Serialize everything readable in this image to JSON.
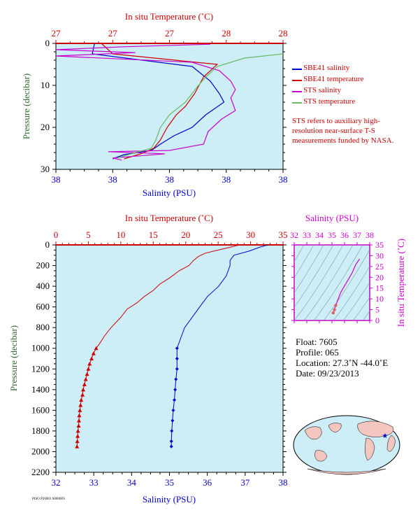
{
  "chart_data": [
    {
      "type": "line",
      "name": "near-surface",
      "top_axis_label": "In situ Temperature (˚C)",
      "top_ticks": [
        "27",
        "27",
        "27",
        "28",
        "28"
      ],
      "bottom_axis_label": "Salinity (PSU)",
      "bottom_ticks": [
        "38",
        "38",
        "38",
        "38",
        "38"
      ],
      "ylabel": "Pressure (decibar)",
      "y_ticks": [
        0,
        10,
        20,
        30
      ],
      "ylim": [
        0,
        30
      ],
      "grid": false,
      "legend_position": "right",
      "series": [
        {
          "name": "SBE41 salinity",
          "color": "#0000cc",
          "points": [
            [
              0.17,
              0
            ],
            [
              0.16,
              2.5
            ],
            [
              0.6,
              5.5
            ],
            [
              0.68,
              9
            ],
            [
              0.72,
              12
            ],
            [
              0.74,
              14
            ],
            [
              0.66,
              17
            ],
            [
              0.6,
              20
            ],
            [
              0.52,
              22
            ],
            [
              0.46,
              24
            ],
            [
              0.42,
              25.5
            ],
            [
              0.3,
              26.5
            ],
            [
              0.25,
              27.5
            ]
          ]
        },
        {
          "name": "SBE41 temperature",
          "color": "#cc0000",
          "points": [
            [
              0.2,
              0
            ],
            [
              0.25,
              2.5
            ],
            [
              0.71,
              5
            ],
            [
              0.65,
              8
            ],
            [
              0.61,
              12
            ],
            [
              0.57,
              15
            ],
            [
              0.53,
              17
            ],
            [
              0.49,
              20
            ],
            [
              0.46,
              23
            ],
            [
              0.43,
              25
            ],
            [
              0.38,
              26.2
            ],
            [
              0.3,
              27.5
            ]
          ]
        },
        {
          "name": "STS salinity",
          "color": "#cc00cc",
          "points": [
            [
              0.68,
              0.2
            ],
            [
              0.3,
              0.8
            ],
            [
              0.0,
              1.5
            ],
            [
              0.35,
              2.2
            ],
            [
              0.0,
              3.0
            ],
            [
              0.6,
              4.5
            ],
            [
              0.72,
              6.5
            ],
            [
              0.77,
              9
            ],
            [
              0.79,
              11
            ],
            [
              0.77,
              13
            ],
            [
              0.79,
              16
            ],
            [
              0.73,
              18
            ],
            [
              0.67,
              21
            ],
            [
              0.65,
              24
            ],
            [
              0.5,
              25.5
            ],
            [
              0.23,
              25.8
            ],
            [
              0.48,
              26.3
            ],
            [
              0.25,
              27.3
            ],
            [
              0.29,
              27.8
            ]
          ]
        },
        {
          "name": "STS temperature",
          "color": "#66bb66",
          "points": [
            [
              1.0,
              2.5
            ],
            [
              0.83,
              3.5
            ],
            [
              0.71,
              5.5
            ],
            [
              0.66,
              8
            ],
            [
              0.62,
              10.5
            ],
            [
              0.57,
              14
            ],
            [
              0.5,
              17
            ],
            [
              0.46,
              20
            ],
            [
              0.44,
              23
            ],
            [
              0.42,
              25
            ],
            [
              0.35,
              26
            ],
            [
              0.27,
              27.3
            ]
          ]
        }
      ],
      "note": "STS refers to auxiliary high-resolution near-surface T-S measurements funded by NASA."
    },
    {
      "type": "line",
      "name": "full-profile",
      "top_axis_label": "In situ Temperature (˚C)",
      "x_temperature_ticks": [
        0,
        5,
        10,
        15,
        20,
        25,
        30,
        35
      ],
      "x_temperature_lim": [
        0,
        35
      ],
      "bottom_axis_label": "Salinity (PSU)",
      "x_salinity_ticks": [
        32,
        33,
        34,
        35,
        36,
        37,
        38
      ],
      "x_salinity_lim": [
        32,
        38
      ],
      "ylabel": "Pressure (decibar)",
      "y_ticks": [
        0,
        200,
        400,
        600,
        800,
        1000,
        1200,
        1400,
        1600,
        1800,
        2000,
        2200
      ],
      "ylim": [
        0,
        2200
      ],
      "series": [
        {
          "name": "temperature",
          "color": "#cc0000",
          "marker": "triangle",
          "points": [
            [
              28.3,
              0
            ],
            [
              27,
              20
            ],
            [
              25,
              50
            ],
            [
              23,
              80
            ],
            [
              22,
              110
            ],
            [
              21.2,
              150
            ],
            [
              20.5,
              200
            ],
            [
              19,
              250
            ],
            [
              17.5,
              320
            ],
            [
              16,
              380
            ],
            [
              15,
              440
            ],
            [
              13.6,
              500
            ],
            [
              12.5,
              560
            ],
            [
              11,
              620
            ],
            [
              10,
              700
            ],
            [
              8.5,
              800
            ],
            [
              7.5,
              880
            ],
            [
              6.8,
              950
            ],
            [
              6.2,
              1000
            ],
            [
              5.8,
              1050
            ],
            [
              5.5,
              1100
            ],
            [
              5.2,
              1150
            ],
            [
              5,
              1200
            ],
            [
              4.8,
              1250
            ],
            [
              4.6,
              1300
            ],
            [
              4.4,
              1350
            ],
            [
              4.2,
              1400
            ],
            [
              4.1,
              1450
            ],
            [
              3.9,
              1500
            ],
            [
              3.8,
              1550
            ],
            [
              3.7,
              1600
            ],
            [
              3.6,
              1650
            ],
            [
              3.55,
              1700
            ],
            [
              3.5,
              1750
            ],
            [
              3.4,
              1800
            ],
            [
              3.35,
              1850
            ],
            [
              3.3,
              1900
            ],
            [
              3.25,
              1950
            ]
          ]
        },
        {
          "name": "salinity",
          "color": "#0000cc",
          "marker": "diamond",
          "points": [
            [
              37.6,
              0
            ],
            [
              37.4,
              20
            ],
            [
              37.1,
              60
            ],
            [
              36.7,
              100
            ],
            [
              36.6,
              150
            ],
            [
              36.6,
              200
            ],
            [
              36.5,
              300
            ],
            [
              36.3,
              400
            ],
            [
              36,
              500
            ],
            [
              35.8,
              600
            ],
            [
              35.6,
              700
            ],
            [
              35.4,
              800
            ],
            [
              35.3,
              900
            ],
            [
              35.2,
              1000
            ],
            [
              35.2,
              1100
            ],
            [
              35.2,
              1200
            ],
            [
              35.17,
              1300
            ],
            [
              35.15,
              1400
            ],
            [
              35.13,
              1500
            ],
            [
              35.1,
              1600
            ],
            [
              35.08,
              1700
            ],
            [
              35.06,
              1800
            ],
            [
              35.05,
              1900
            ],
            [
              35.05,
              1950
            ]
          ]
        }
      ],
      "inset": {
        "type": "line",
        "top_axis_label": "Salinity (PSU)",
        "x_ticks": [
          32,
          33,
          34,
          35,
          36,
          37,
          38
        ],
        "x_lim": [
          32,
          38
        ],
        "right_axis_label": "In situ Temperature (˚C)",
        "y_ticks": [
          0,
          5,
          10,
          15,
          20,
          25,
          30,
          35
        ],
        "y_lim": [
          0,
          35
        ],
        "series": [
          {
            "name": "T-S",
            "color": "#cc00cc",
            "points": [
              [
                37.2,
                28.5
              ],
              [
                36.9,
                26
              ],
              [
                36.6,
                22
              ],
              [
                36.3,
                19
              ],
              [
                36.0,
                16
              ],
              [
                35.7,
                13
              ],
              [
                35.5,
                10
              ],
              [
                35.3,
                7
              ],
              [
                35.2,
                5
              ],
              [
                35.1,
                3.5
              ]
            ]
          }
        ]
      }
    }
  ],
  "info": {
    "float": "Float:  7605",
    "profile": "Profile:  065",
    "location": "Location:  27.3˚N  -44.0˚E",
    "date": "Date:  09/23/2013"
  },
  "colors": {
    "plot_bg": "#cdeef6",
    "axis": "#000000",
    "temp": "#cc0000",
    "sal": "#0000cc",
    "sts": "#cc00cc"
  },
  "footer_id": "PISO P26001 S0000FS"
}
